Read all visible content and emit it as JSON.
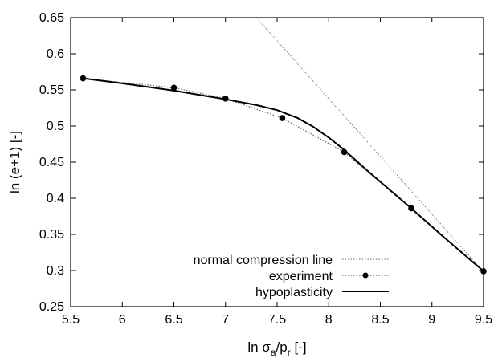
{
  "chart_data": {
    "type": "line",
    "title": "",
    "xlabel": {
      "base": "ln σ",
      "sub1": "a",
      "mid": "/p",
      "sub2": "r",
      "tail": " [-]"
    },
    "ylabel": "ln (e+1) [-]",
    "xlim": [
      5.5,
      9.5
    ],
    "ylim": [
      0.25,
      0.65
    ],
    "x_ticks": [
      5.5,
      6,
      6.5,
      7,
      7.5,
      8,
      8.5,
      9,
      9.5
    ],
    "x_tick_labels": [
      "5.5",
      "6",
      "6.5",
      "7",
      "7.5",
      "8",
      "8.5",
      "9",
      "9.5"
    ],
    "y_ticks": [
      0.25,
      0.3,
      0.35,
      0.4,
      0.45,
      0.5,
      0.55,
      0.6,
      0.65
    ],
    "y_tick_labels": [
      "0.25",
      "0.3",
      "0.35",
      "0.4",
      "0.45",
      "0.5",
      "0.55",
      "0.6",
      "0.65"
    ],
    "grid": false,
    "legend_position": "bottom-right",
    "series": [
      {
        "name": "normal compression line",
        "style": "dotted",
        "color": "#888888",
        "x": [
          7.3,
          9.5
        ],
        "y": [
          0.65,
          0.298
        ]
      },
      {
        "name": "experiment",
        "style": "dotted-markers",
        "color": "#000000",
        "x": [
          5.62,
          6.5,
          7.0,
          7.55,
          8.15,
          8.8,
          9.5
        ],
        "y": [
          0.566,
          0.553,
          0.538,
          0.511,
          0.464,
          0.386,
          0.299
        ]
      },
      {
        "name": "hypoplasticity",
        "style": "solid",
        "color": "#000000",
        "x": [
          5.62,
          6.0,
          6.5,
          7.0,
          7.3,
          7.5,
          7.7,
          7.85,
          8.0,
          8.15,
          8.4,
          8.8,
          9.1,
          9.5
        ],
        "y": [
          0.566,
          0.559,
          0.549,
          0.537,
          0.529,
          0.522,
          0.511,
          0.499,
          0.484,
          0.467,
          0.435,
          0.386,
          0.348,
          0.299
        ]
      }
    ]
  }
}
